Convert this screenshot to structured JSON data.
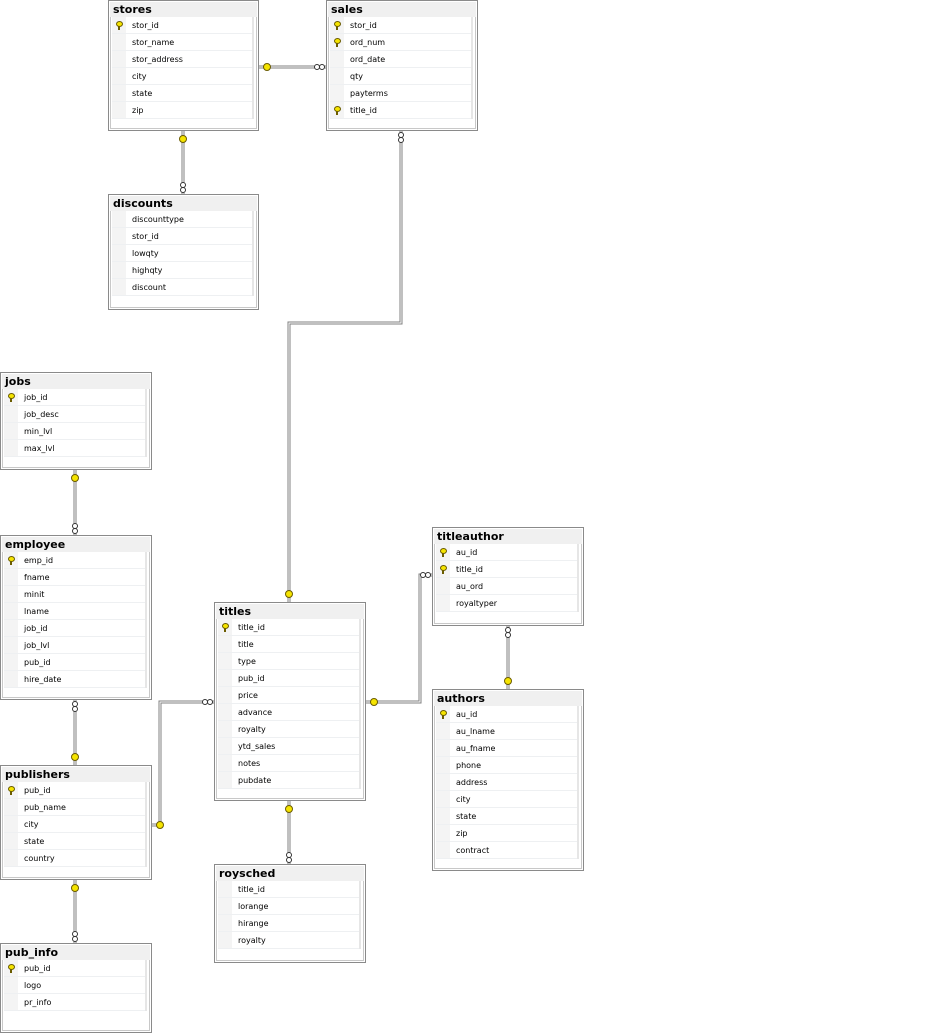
{
  "tables": [
    {
      "name": "stores",
      "columns": [
        {
          "n": "stor_id",
          "pk": true
        },
        {
          "n": "stor_name"
        },
        {
          "n": "stor_address"
        },
        {
          "n": "city"
        },
        {
          "n": "state"
        },
        {
          "n": "zip"
        }
      ]
    },
    {
      "name": "sales",
      "columns": [
        {
          "n": "stor_id",
          "pk": true
        },
        {
          "n": "ord_num",
          "pk": true
        },
        {
          "n": "ord_date"
        },
        {
          "n": "qty"
        },
        {
          "n": "payterms"
        },
        {
          "n": "title_id",
          "pk": true
        }
      ]
    },
    {
      "name": "discounts",
      "columns": [
        {
          "n": "discounttype"
        },
        {
          "n": "stor_id"
        },
        {
          "n": "lowqty"
        },
        {
          "n": "highqty"
        },
        {
          "n": "discount"
        }
      ]
    },
    {
      "name": "jobs",
      "columns": [
        {
          "n": "job_id",
          "pk": true
        },
        {
          "n": "job_desc"
        },
        {
          "n": "min_lvl"
        },
        {
          "n": "max_lvl"
        }
      ]
    },
    {
      "name": "employee",
      "columns": [
        {
          "n": "emp_id",
          "pk": true
        },
        {
          "n": "fname"
        },
        {
          "n": "minit"
        },
        {
          "n": "lname"
        },
        {
          "n": "job_id"
        },
        {
          "n": "job_lvl"
        },
        {
          "n": "pub_id"
        },
        {
          "n": "hire_date"
        }
      ]
    },
    {
      "name": "publishers",
      "columns": [
        {
          "n": "pub_id",
          "pk": true
        },
        {
          "n": "pub_name"
        },
        {
          "n": "city"
        },
        {
          "n": "state"
        },
        {
          "n": "country"
        }
      ]
    },
    {
      "name": "pub_info",
      "columns": [
        {
          "n": "pub_id",
          "pk": true
        },
        {
          "n": "logo"
        },
        {
          "n": "pr_info"
        }
      ]
    },
    {
      "name": "titles",
      "columns": [
        {
          "n": "title_id",
          "pk": true
        },
        {
          "n": "title"
        },
        {
          "n": "type"
        },
        {
          "n": "pub_id"
        },
        {
          "n": "price"
        },
        {
          "n": "advance"
        },
        {
          "n": "royalty"
        },
        {
          "n": "ytd_sales"
        },
        {
          "n": "notes"
        },
        {
          "n": "pubdate"
        }
      ]
    },
    {
      "name": "roysched",
      "columns": [
        {
          "n": "title_id"
        },
        {
          "n": "lorange"
        },
        {
          "n": "hirange"
        },
        {
          "n": "royalty"
        }
      ]
    },
    {
      "name": "titleauthor",
      "columns": [
        {
          "n": "au_id",
          "pk": true
        },
        {
          "n": "title_id",
          "pk": true
        },
        {
          "n": "au_ord"
        },
        {
          "n": "royaltyper"
        }
      ]
    },
    {
      "name": "authors",
      "columns": [
        {
          "n": "au_id",
          "pk": true
        },
        {
          "n": "au_lname"
        },
        {
          "n": "au_fname"
        },
        {
          "n": "phone"
        },
        {
          "n": "address"
        },
        {
          "n": "city"
        },
        {
          "n": "state"
        },
        {
          "n": "zip"
        },
        {
          "n": "contract"
        }
      ]
    }
  ],
  "relationships": [
    {
      "one": "stores",
      "many": "sales"
    },
    {
      "one": "stores",
      "many": "discounts"
    },
    {
      "one": "titles",
      "many": "sales"
    },
    {
      "one": "jobs",
      "many": "employee"
    },
    {
      "one": "publishers",
      "many": "employee"
    },
    {
      "one": "publishers",
      "many": "titles"
    },
    {
      "one": "publishers",
      "many": "pub_info"
    },
    {
      "one": "titles",
      "many": "roysched"
    },
    {
      "one": "titles",
      "many": "titleauthor"
    },
    {
      "one": "authors",
      "many": "titleauthor"
    }
  ],
  "colors": {
    "key": "#f5e400",
    "line": "#888888",
    "header": "#f0f0f0"
  }
}
